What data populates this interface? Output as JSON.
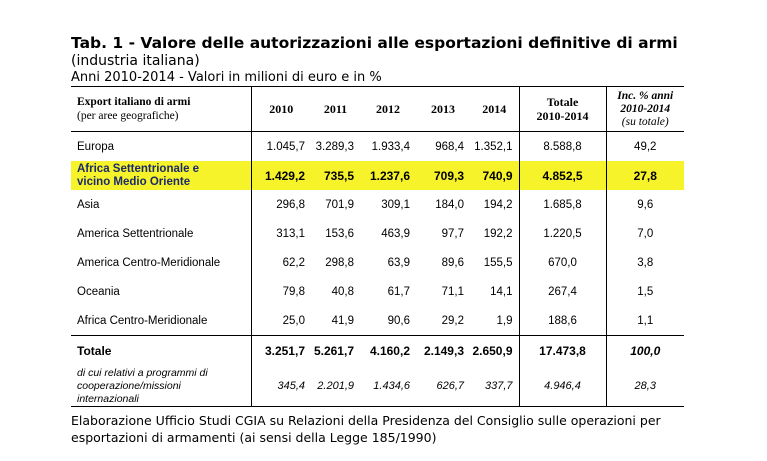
{
  "title": "Tab. 1 - Valore delle autorizzazioni alle esportazioni definitive di armi",
  "subtitle": "(industria italiana)",
  "units_line": "Anni 2010-2014 - Valori in milioni di euro e in %",
  "header": {
    "first": "Export italiano di armi",
    "first_sub": "(per aree geografiche)",
    "years": [
      "2010",
      "2011",
      "2012",
      "2013",
      "2014"
    ],
    "total_line1": "Totale",
    "total_line2": "2010-2014",
    "inc_line1": "Inc. % anni",
    "inc_line2": "2010-2014",
    "inc_line3": "(su totale)"
  },
  "rows": [
    {
      "name": "Europa",
      "values": [
        "1.045,7",
        "3.289,3",
        "1.933,4",
        "968,4",
        "1.352,1"
      ],
      "total": "8.588,8",
      "inc": "49,2"
    },
    {
      "name_line1": "Africa Settentrionale e",
      "name_line2": "vicino Medio Oriente",
      "values": [
        "1.429,2",
        "735,5",
        "1.237,6",
        "709,3",
        "740,9"
      ],
      "total": "4.852,5",
      "inc": "27,8"
    },
    {
      "name": "Asia",
      "values": [
        "296,8",
        "701,9",
        "309,1",
        "184,0",
        "194,2"
      ],
      "total": "1.685,8",
      "inc": "9,6"
    },
    {
      "name": "America Settentrionale",
      "values": [
        "313,1",
        "153,6",
        "463,9",
        "97,7",
        "192,2"
      ],
      "total": "1.220,5",
      "inc": "7,0"
    },
    {
      "name": "America Centro-Meridionale",
      "values": [
        "62,2",
        "298,8",
        "63,9",
        "89,6",
        "155,5"
      ],
      "total": "670,0",
      "inc": "3,8"
    },
    {
      "name": "Oceania",
      "values": [
        "79,8",
        "40,8",
        "61,7",
        "71,1",
        "14,1"
      ],
      "total": "267,4",
      "inc": "1,5"
    },
    {
      "name": "Africa Centro-Meridionale",
      "values": [
        "25,0",
        "41,9",
        "90,6",
        "29,2",
        "1,9"
      ],
      "total": "188,6",
      "inc": "1,1"
    }
  ],
  "total_row": {
    "name": "Totale",
    "values": [
      "3.251,7",
      "5.261,7",
      "4.160,2",
      "2.149,3",
      "2.650,9"
    ],
    "total": "17.473,8",
    "inc": "100,0"
  },
  "coop_row": {
    "name_line1": "di cui relativi a programmi di",
    "name_line2": "cooperazione/missioni",
    "name_line3": "internazionali",
    "values": [
      "345,4",
      "2.201,9",
      "1.434,6",
      "626,7",
      "337,7"
    ],
    "total": "4.946,4",
    "inc": "28,3"
  },
  "footer_line1": "Elaborazione Ufficio Studi CGIA su Relazioni della Presidenza del Consiglio sulle operazioni per",
  "footer_line2": "esportazioni di armamenti (ai sensi della Legge 185/1990)",
  "colors": {
    "highlight": "#f7f32a",
    "highlight_text": "#1a2a6c"
  }
}
